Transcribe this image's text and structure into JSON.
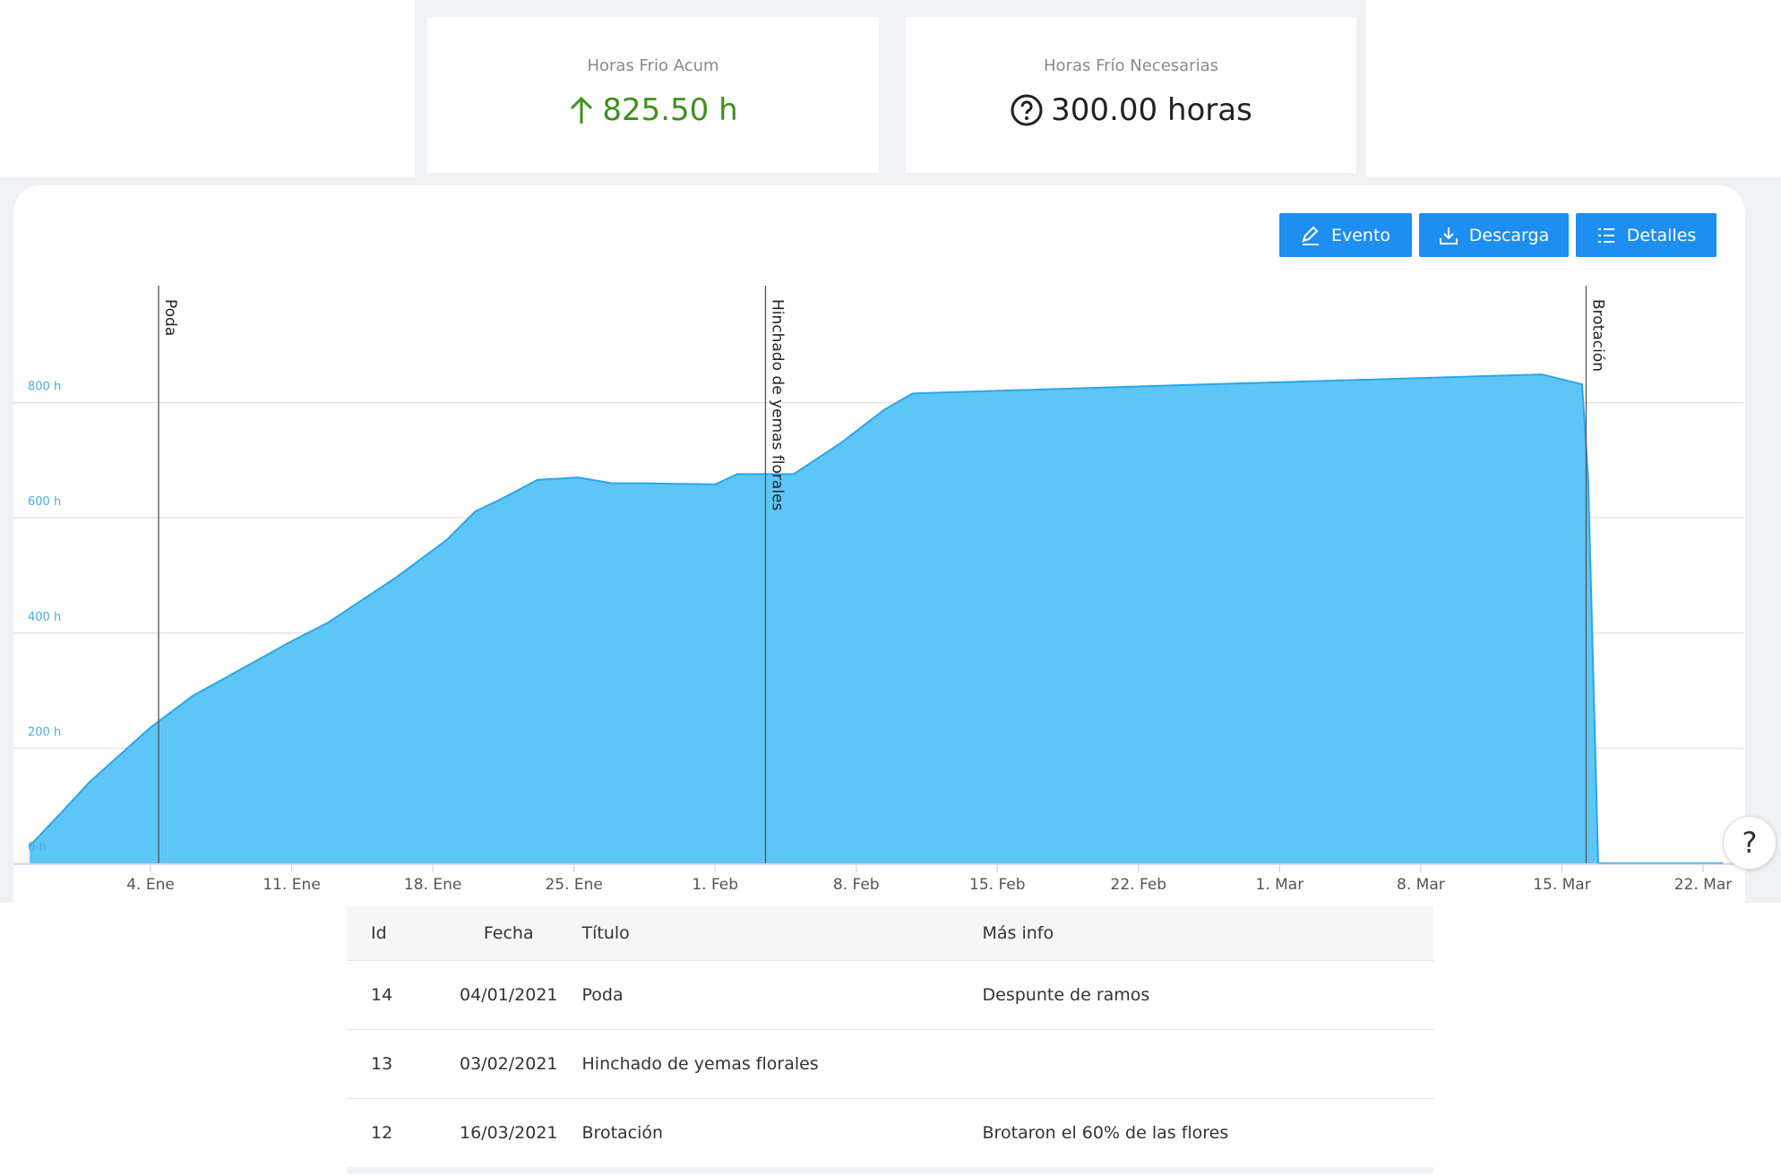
{
  "stats": [
    {
      "label": "Horas Frio Acum",
      "value": "825.50 h"
    },
    {
      "label": "Horas Frío Necesarias",
      "value": "300.00 horas"
    }
  ],
  "buttons": [
    "Evento",
    "Descarga",
    "Detalles"
  ],
  "help": "?",
  "chart_data": {
    "type": "area",
    "x": [
      -2,
      -0.4,
      1.0,
      4.0,
      6.1,
      8.9,
      10.9,
      12.8,
      16.2,
      18.7,
      20.1,
      21.3,
      23.2,
      25.2,
      26.9,
      28.6,
      32.0,
      33.1,
      35.9,
      38.2,
      40.4,
      41.8,
      52.8,
      73.0,
      75.0,
      75.3,
      75.8,
      82.0
    ],
    "values": [
      30,
      89,
      142,
      236,
      291,
      345,
      384,
      418,
      497,
      562,
      611,
      631,
      666,
      670,
      660,
      660,
      658,
      676,
      676,
      729,
      788,
      816,
      828,
      849,
      832,
      670,
      0,
      0
    ],
    "color": "#5ec6f6",
    "line_color": "#2ba6ea",
    "xlim": [
      -2,
      83
    ],
    "ylim": [
      0,
      1000
    ],
    "xticks": [
      {
        "value": 4,
        "label": "4. Ene"
      },
      {
        "value": 11,
        "label": "11. Ene"
      },
      {
        "value": 18,
        "label": "18. Ene"
      },
      {
        "value": 25,
        "label": "25. Ene"
      },
      {
        "value": 32,
        "label": "1. Feb"
      },
      {
        "value": 39,
        "label": "8. Feb"
      },
      {
        "value": 46,
        "label": "15. Feb"
      },
      {
        "value": 53,
        "label": "22. Feb"
      },
      {
        "value": 60,
        "label": "1. Mar"
      },
      {
        "value": 67,
        "label": "8. Mar"
      },
      {
        "value": 74,
        "label": "15. Mar"
      },
      {
        "value": 81,
        "label": "22. Mar"
      }
    ],
    "yticks": [
      {
        "value": 0,
        "label": "0 h"
      },
      {
        "value": 200,
        "label": "200 h"
      },
      {
        "value": 400,
        "label": "400 h"
      },
      {
        "value": 600,
        "label": "600 h"
      },
      {
        "value": 800,
        "label": "800 h"
      }
    ],
    "grid": true,
    "events": [
      {
        "x": 4.4,
        "label": "Poda"
      },
      {
        "x": 34.5,
        "label": "Hinchado de yemas florales"
      },
      {
        "x": 75.2,
        "label": "Brotación"
      }
    ]
  },
  "table": {
    "header": [
      "Id",
      "Fecha",
      "Título",
      "Más info"
    ],
    "rows": [
      [
        "14",
        "04/01/2021",
        "Poda",
        "Despunte de ramos"
      ],
      [
        "13",
        "03/02/2021",
        "Hinchado de yemas florales",
        ""
      ],
      [
        "12",
        "16/03/2021",
        "Brotación",
        "Brotaron el 60% de las flores"
      ]
    ]
  }
}
